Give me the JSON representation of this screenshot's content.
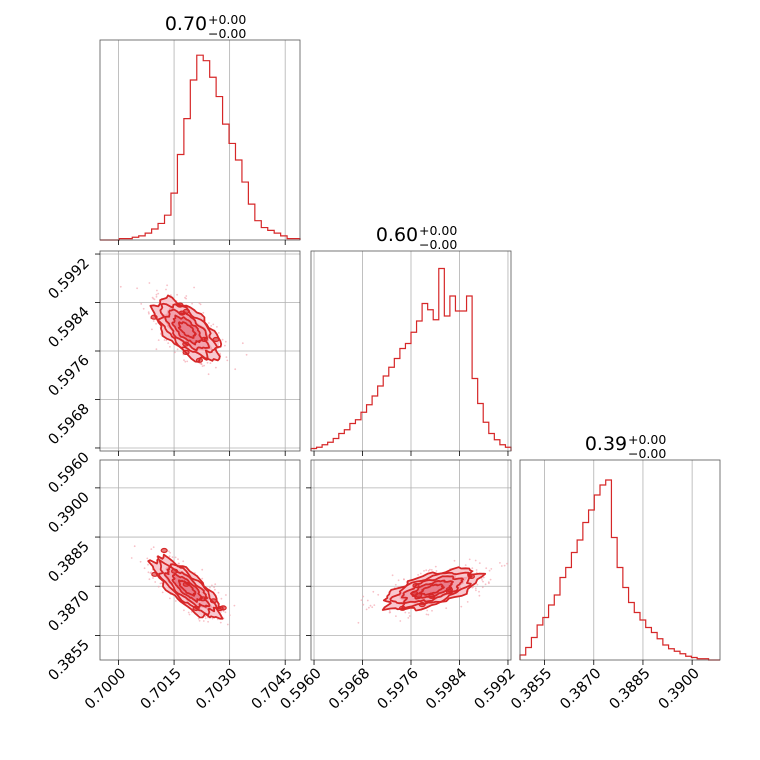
{
  "chart_data": {
    "type": "corner",
    "color": "#d62728",
    "fill_color": "#f08a96",
    "grid": true,
    "parameters": [
      {
        "title_value": "0.70",
        "title_plus": "+0.00",
        "title_minus": "−0.00",
        "range": [
          0.6995,
          0.7049
        ],
        "ticks": [
          0.7,
          0.7015,
          0.703,
          0.7045
        ],
        "tick_labels": [
          "0.7000",
          "0.7015",
          "0.7030",
          "0.7045"
        ],
        "hist_y": [
          0,
          0,
          0,
          1,
          1,
          2,
          3,
          5,
          8,
          12,
          18,
          34,
          62,
          88,
          116,
          134,
          130,
          118,
          104,
          84,
          70,
          58,
          42,
          26,
          14,
          9,
          7,
          5,
          3,
          1,
          1
        ],
        "hist_ymax": 145
      },
      {
        "title_value": "0.60",
        "title_plus": "+0.00",
        "title_minus": "−0.00",
        "range": [
          0.59595,
          0.59925
        ],
        "ticks": [
          0.596,
          0.5968,
          0.5976,
          0.5984,
          0.5992
        ],
        "tick_labels": [
          "0.5960",
          "0.5968",
          "0.5976",
          "0.5984",
          "0.5992"
        ],
        "hist_y": [
          2,
          3,
          5,
          7,
          10,
          14,
          17,
          22,
          25,
          31,
          37,
          44,
          52,
          60,
          67,
          74,
          82,
          86,
          95,
          104,
          118,
          113,
          105,
          146,
          108,
          124,
          112,
          112,
          124,
          58,
          38,
          23,
          14,
          9,
          5,
          3
        ],
        "hist_ymax": 160
      },
      {
        "title_value": "0.39",
        "title_plus": "+0.00",
        "title_minus": "−0.00",
        "range": [
          0.38475,
          0.39085
        ],
        "ticks": [
          0.3855,
          0.387,
          0.3885,
          0.39
        ],
        "tick_labels": [
          "0.3855",
          "0.3870",
          "0.3885",
          "0.3900"
        ],
        "hist_y": [
          4,
          10,
          18,
          28,
          34,
          44,
          52,
          66,
          74,
          86,
          96,
          110,
          120,
          132,
          140,
          144,
          98,
          74,
          58,
          46,
          38,
          32,
          26,
          22,
          17,
          12,
          9,
          7,
          5,
          3,
          2,
          1,
          1,
          0,
          0
        ],
        "hist_ymax": 160
      }
    ],
    "pairs": [
      {
        "x": 0,
        "y": 1,
        "center": [
          0.70185,
          0.59795
        ],
        "slope": -0.55,
        "rx": 0.0011,
        "ry": 0.00032
      },
      {
        "x": 0,
        "y": 2,
        "center": [
          0.70185,
          0.38695
        ],
        "slope": -0.98,
        "rx": 0.00115,
        "ry": 0.00045
      },
      {
        "x": 1,
        "y": 2,
        "center": [
          0.59795,
          0.3869
        ],
        "slope": 0.55,
        "rx": 0.0008,
        "ry": 0.00047
      }
    ]
  }
}
